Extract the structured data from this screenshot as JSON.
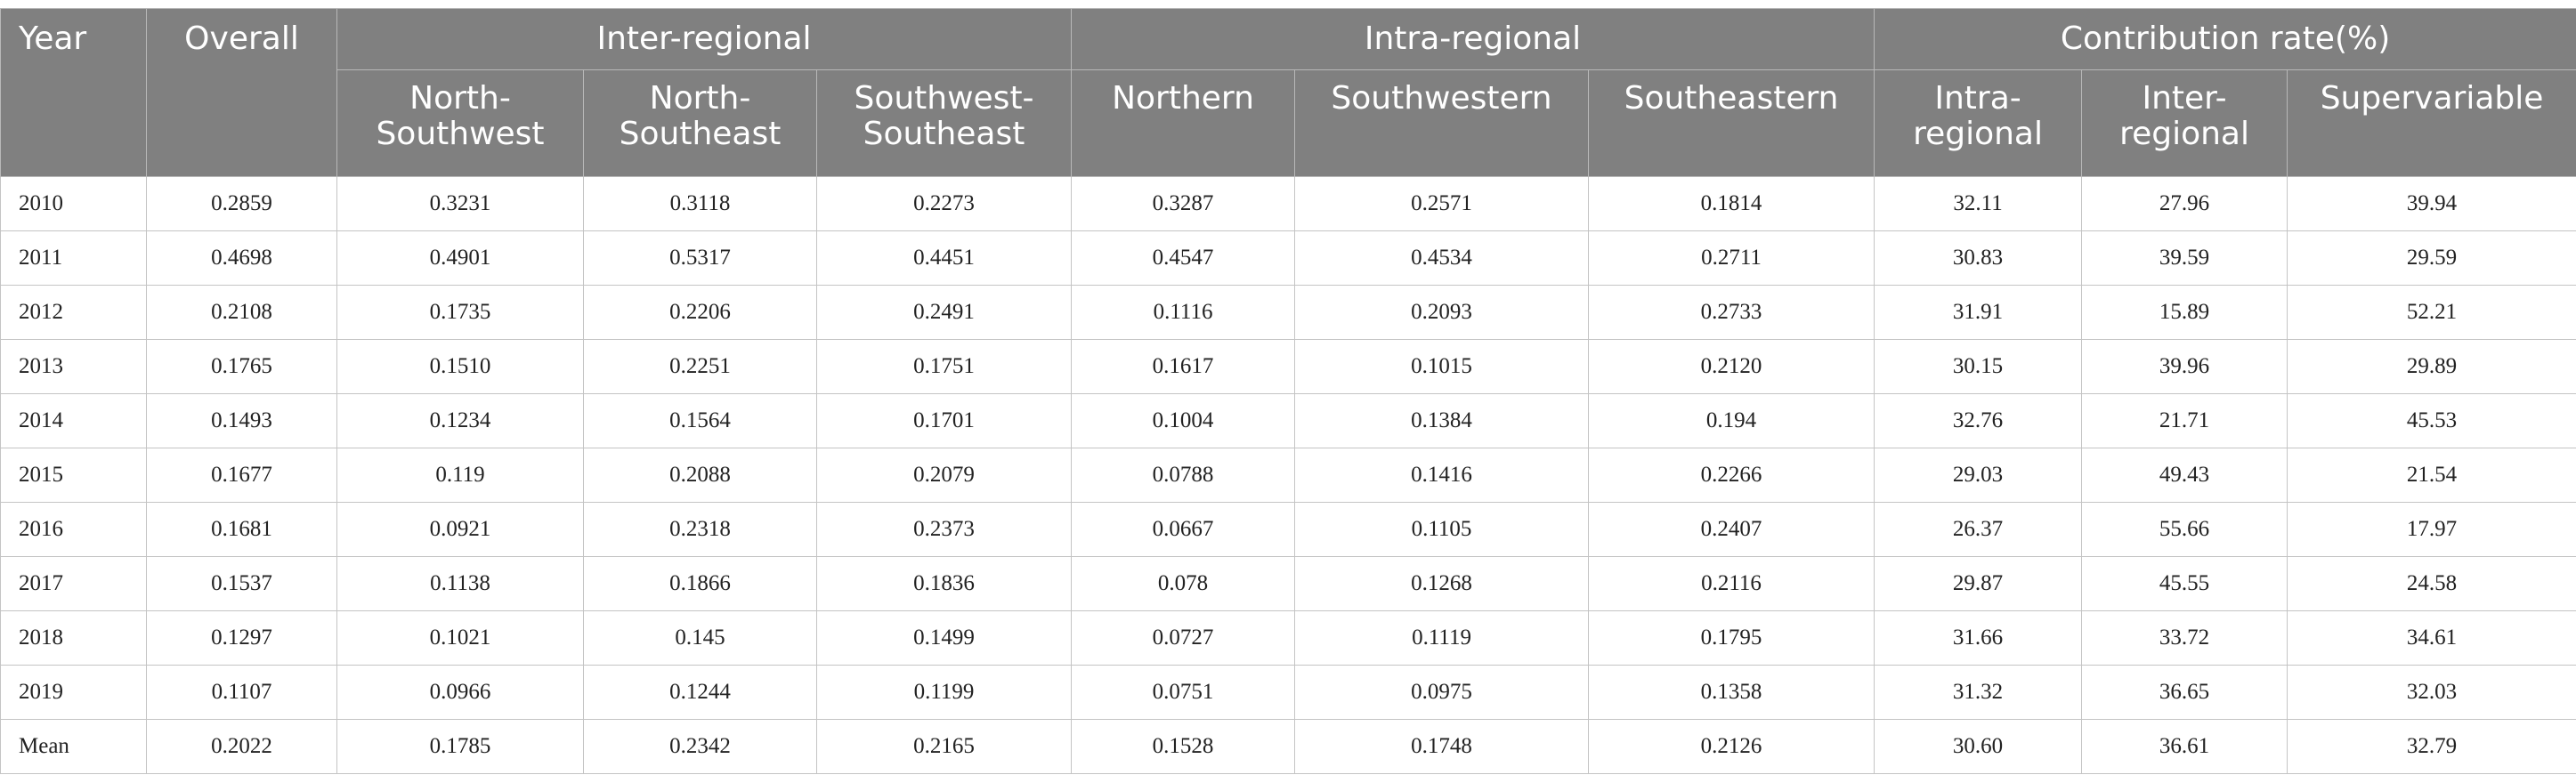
{
  "table": {
    "header": {
      "first": [
        "Year",
        "Overall"
      ],
      "groups": [
        {
          "label": "Inter-regional",
          "columns": [
            "North-Southwest",
            "North-Southeast",
            "Southwest-Southeast"
          ]
        },
        {
          "label": "Intra-regional",
          "columns": [
            "Northern",
            "Southwestern",
            "Southeastern"
          ]
        },
        {
          "label": "Contribution rate(%)",
          "columns": [
            "Intra-regional",
            "Inter-regional",
            "Supervariable"
          ]
        }
      ]
    },
    "rows": [
      [
        "2010",
        "0.2859",
        "0.3231",
        "0.3118",
        "0.2273",
        "0.3287",
        "0.2571",
        "0.1814",
        "32.11",
        "27.96",
        "39.94"
      ],
      [
        "2011",
        "0.4698",
        "0.4901",
        "0.5317",
        "0.4451",
        "0.4547",
        "0.4534",
        "0.2711",
        "30.83",
        "39.59",
        "29.59"
      ],
      [
        "2012",
        "0.2108",
        "0.1735",
        "0.2206",
        "0.2491",
        "0.1116",
        "0.2093",
        "0.2733",
        "31.91",
        "15.89",
        "52.21"
      ],
      [
        "2013",
        "0.1765",
        "0.1510",
        "0.2251",
        "0.1751",
        "0.1617",
        "0.1015",
        "0.2120",
        "30.15",
        "39.96",
        "29.89"
      ],
      [
        "2014",
        "0.1493",
        "0.1234",
        "0.1564",
        "0.1701",
        "0.1004",
        "0.1384",
        "0.194",
        "32.76",
        "21.71",
        "45.53"
      ],
      [
        "2015",
        "0.1677",
        "0.119",
        "0.2088",
        "0.2079",
        "0.0788",
        "0.1416",
        "0.2266",
        "29.03",
        "49.43",
        "21.54"
      ],
      [
        "2016",
        "0.1681",
        "0.0921",
        "0.2318",
        "0.2373",
        "0.0667",
        "0.1105",
        "0.2407",
        "26.37",
        "55.66",
        "17.97"
      ],
      [
        "2017",
        "0.1537",
        "0.1138",
        "0.1866",
        "0.1836",
        "0.078",
        "0.1268",
        "0.2116",
        "29.87",
        "45.55",
        "24.58"
      ],
      [
        "2018",
        "0.1297",
        "0.1021",
        "0.145",
        "0.1499",
        "0.0727",
        "0.1119",
        "0.1795",
        "31.66",
        "33.72",
        "34.61"
      ],
      [
        "2019",
        "0.1107",
        "0.0966",
        "0.1244",
        "0.1199",
        "0.0751",
        "0.0975",
        "0.1358",
        "31.32",
        "36.65",
        "32.03"
      ],
      [
        "Mean",
        "0.2022",
        "0.1785",
        "0.2342",
        "0.2165",
        "0.1528",
        "0.1748",
        "0.2126",
        "30.60",
        "36.61",
        "32.79"
      ]
    ]
  }
}
